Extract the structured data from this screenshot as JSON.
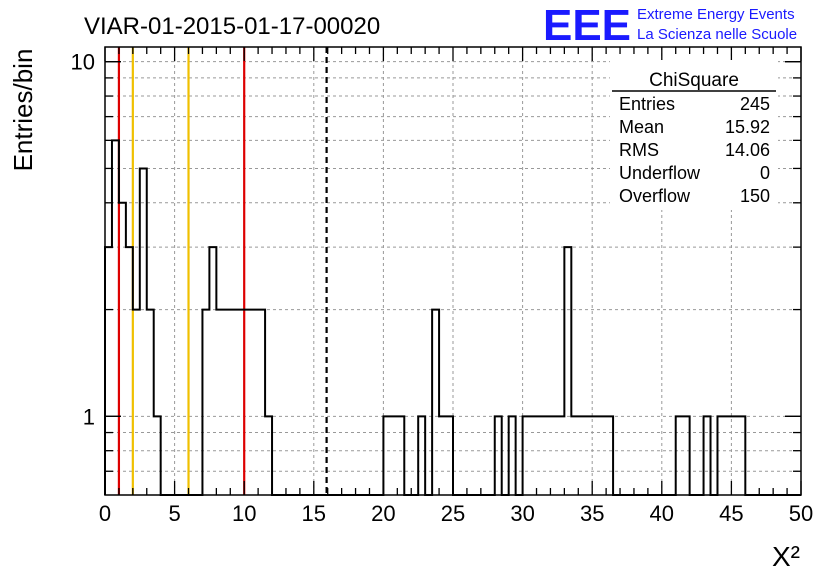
{
  "header": {
    "run_title": "VIAR-01-2015-01-17-00020",
    "logo_text": "EEE",
    "logo_line1": "Extreme Energy Events",
    "logo_line2": "La Scienza nelle Scuole"
  },
  "stats_box": {
    "title": "ChiSquare",
    "rows": [
      {
        "label": "Entries",
        "value": "245"
      },
      {
        "label": "Mean",
        "value": "15.92"
      },
      {
        "label": "RMS",
        "value": "14.06"
      },
      {
        "label": "Underflow",
        "value": "0"
      },
      {
        "label": "Overflow",
        "value": "150"
      }
    ]
  },
  "colors": {
    "histogram": "#000000",
    "red_line": "#dd0000",
    "yellow_line": "#f0c000",
    "grid": "#999999",
    "logo": "#1a1aff"
  },
  "chart_data": {
    "type": "bar",
    "style": "step-histogram",
    "title": "VIAR-01-2015-01-17-00020",
    "xlabel": "X²",
    "ylabel": "Entries/bin",
    "xlim": [
      0,
      50
    ],
    "ylim": [
      0.6,
      11
    ],
    "yscale": "log",
    "grid": true,
    "legend": "top-right",
    "xticks": [
      0,
      5,
      10,
      15,
      20,
      25,
      30,
      35,
      40,
      45,
      50
    ],
    "xtick_labels": [
      "0",
      "5",
      "10",
      "15",
      "20",
      "25",
      "30",
      "35",
      "40",
      "45",
      "50"
    ],
    "yticks": [
      1,
      10
    ],
    "ytick_labels": [
      "1",
      "10"
    ],
    "bin_width": 0.5,
    "bin_start": 0,
    "values": [
      3,
      6,
      4,
      3,
      2,
      5,
      2,
      1,
      0,
      0,
      0,
      0,
      0,
      0,
      2,
      3,
      2,
      2,
      2,
      2,
      2,
      2,
      2,
      1,
      0,
      0,
      0,
      0,
      0,
      0,
      0,
      0,
      0,
      0,
      0,
      0,
      0,
      0,
      0,
      0,
      1,
      1,
      1,
      0,
      0,
      1,
      0,
      2,
      1,
      1,
      0,
      0,
      0,
      0,
      0,
      0,
      1,
      0,
      1,
      0,
      1,
      1,
      1,
      1,
      1,
      1,
      3,
      1,
      1,
      1,
      1,
      1,
      1,
      0,
      0,
      0,
      0,
      0,
      0,
      0,
      0,
      0,
      1,
      1,
      0,
      0,
      1,
      0,
      1,
      1,
      1,
      1,
      0,
      0,
      0,
      0,
      0,
      0,
      0,
      0
    ],
    "vertical_lines": [
      {
        "x": 1,
        "color": "red",
        "style": "solid"
      },
      {
        "x": 2,
        "color": "yellow",
        "style": "solid"
      },
      {
        "x": 6,
        "color": "yellow",
        "style": "solid"
      },
      {
        "x": 10,
        "color": "red",
        "style": "solid"
      },
      {
        "x": 15.92,
        "color": "black",
        "style": "dashed"
      }
    ]
  }
}
